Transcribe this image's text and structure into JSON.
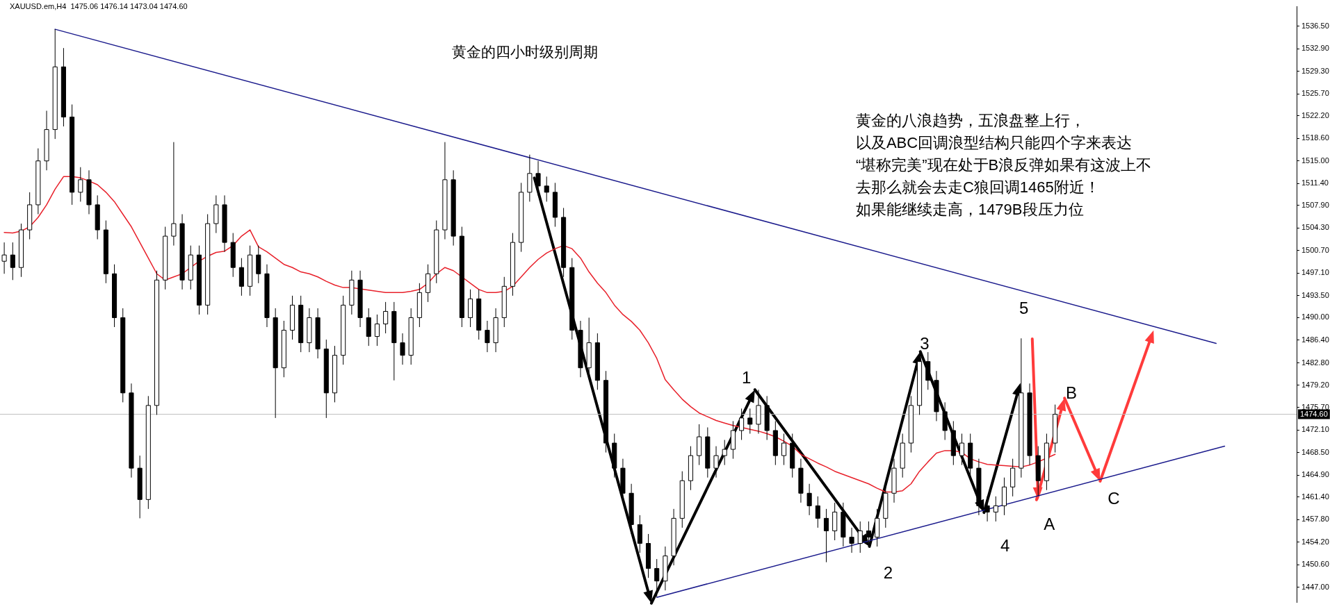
{
  "chart_data": {
    "type": "candlestick",
    "title": "黄金的四小时级别周期",
    "annotations": [
      "XAUUSD.em,H4  1475.06 1476.14 1473.04 1474.60",
      "黄金的八浪趋势，五浪盘整上行，",
      "以及ABC回调浪型结构只能四个字来表达",
      "“堪称完美”现在处于B浪反弹如果有这波上不",
      "去那么就会去走C狼回调1465附近！",
      "如果能继续走高，1479B段压力位",
      "1",
      "2",
      "3",
      "4",
      "5",
      "A",
      "B",
      "C"
    ],
    "categories": [
      null,
      null,
      null,
      null,
      null,
      null,
      null,
      null,
      null,
      null,
      null,
      null,
      null,
      null,
      null,
      null,
      null,
      null,
      null,
      null,
      null,
      null,
      null,
      null,
      null,
      null,
      null,
      null,
      null,
      null,
      null,
      null,
      null,
      null,
      null,
      null,
      null,
      null,
      null,
      null,
      null,
      null,
      null,
      null,
      null,
      null,
      null,
      null,
      null,
      null,
      null,
      null,
      null,
      null,
      null,
      null,
      null,
      null,
      null,
      null,
      null,
      null,
      null,
      null,
      null,
      null,
      null,
      null,
      null,
      null,
      null,
      null,
      null,
      null,
      null,
      null,
      null,
      null,
      null,
      null,
      null,
      null,
      null,
      null,
      null,
      null,
      null,
      null,
      null,
      null,
      null,
      null,
      null,
      null,
      null,
      null,
      null,
      null,
      null,
      null,
      null,
      null,
      null,
      null,
      null,
      null,
      null,
      null,
      null,
      null,
      null,
      null,
      null,
      null,
      null,
      null,
      null,
      null,
      null,
      null,
      null,
      null,
      null,
      null,
      null,
      null,
      null,
      null,
      null,
      null,
      null,
      null,
      null,
      null,
      null,
      null,
      null,
      null,
      null,
      null,
      null,
      null,
      null,
      null,
      null,
      null,
      null,
      null,
      null,
      null,
      null,
      null,
      null
    ],
    "ohlc": [
      [
        1499,
        1502,
        1497,
        1500
      ],
      [
        1500,
        1502,
        1496,
        1498
      ],
      [
        1498,
        1505,
        1496.5,
        1504
      ],
      [
        1504,
        1510,
        1502.5,
        1508
      ],
      [
        1508,
        1517,
        1506.5,
        1515
      ],
      [
        1515,
        1523,
        1513.5,
        1520
      ],
      [
        1520,
        1536,
        1518.5,
        1530
      ],
      [
        1530,
        1533,
        1520.5,
        1522
      ],
      [
        1522,
        1524,
        1508,
        1510
      ],
      [
        1510,
        1514,
        1508.5,
        1512
      ],
      [
        1512,
        1513.5,
        1506.5,
        1508
      ],
      [
        1508,
        1509.5,
        1502.5,
        1504
      ],
      [
        1504,
        1505.5,
        1495.5,
        1497
      ],
      [
        1497,
        1498.5,
        1488.5,
        1490
      ],
      [
        1490,
        1491.5,
        1476.5,
        1478
      ],
      [
        1478,
        1479.5,
        1464.5,
        1466
      ],
      [
        1466,
        1468,
        1458,
        1461
      ],
      [
        1461,
        1477.5,
        1459.5,
        1476
      ],
      [
        1476,
        1497.5,
        1474.5,
        1496
      ],
      [
        1496,
        1504.5,
        1494.5,
        1503
      ],
      [
        1503,
        1518,
        1501.5,
        1505
      ],
      [
        1505,
        1506.5,
        1494.5,
        1496
      ],
      [
        1496,
        1501.5,
        1494.5,
        1500
      ],
      [
        1500,
        1501.5,
        1490.5,
        1492
      ],
      [
        1492,
        1506.5,
        1490.5,
        1505
      ],
      [
        1505,
        1509.5,
        1503.5,
        1508
      ],
      [
        1508,
        1509.5,
        1500.5,
        1502
      ],
      [
        1502,
        1503.5,
        1496.5,
        1498
      ],
      [
        1498,
        1499.5,
        1493.5,
        1495
      ],
      [
        1495,
        1501.5,
        1493.5,
        1500
      ],
      [
        1500,
        1501.5,
        1495.5,
        1497
      ],
      [
        1497,
        1498.5,
        1488.5,
        1490
      ],
      [
        1490,
        1491.5,
        1474,
        1482
      ],
      [
        1482,
        1489.5,
        1480.5,
        1488
      ],
      [
        1488,
        1493.5,
        1486.5,
        1492
      ],
      [
        1492,
        1493.5,
        1484.5,
        1486
      ],
      [
        1486,
        1491.5,
        1484.5,
        1490
      ],
      [
        1490,
        1491.5,
        1483.5,
        1485
      ],
      [
        1485,
        1486.5,
        1474,
        1478
      ],
      [
        1478,
        1485.5,
        1476.5,
        1484
      ],
      [
        1484,
        1493.5,
        1482.5,
        1492
      ],
      [
        1492,
        1497.5,
        1490.5,
        1496
      ],
      [
        1496,
        1497.5,
        1488.5,
        1490
      ],
      [
        1490,
        1491.5,
        1485.5,
        1487
      ],
      [
        1487,
        1490.5,
        1485.5,
        1489
      ],
      [
        1489,
        1492.5,
        1487.5,
        1491
      ],
      [
        1491,
        1492.5,
        1480,
        1486
      ],
      [
        1486,
        1487.5,
        1482.5,
        1484
      ],
      [
        1484,
        1491.5,
        1482.5,
        1490
      ],
      [
        1490,
        1495.5,
        1488.5,
        1494
      ],
      [
        1494,
        1498.5,
        1492.5,
        1497
      ],
      [
        1497,
        1505.5,
        1495.5,
        1504
      ],
      [
        1504,
        1518,
        1502.5,
        1512
      ],
      [
        1512,
        1513.5,
        1501.5,
        1503
      ],
      [
        1503,
        1504.5,
        1488.5,
        1490
      ],
      [
        1490,
        1494.5,
        1488.5,
        1493
      ],
      [
        1493,
        1494.5,
        1486.5,
        1488
      ],
      [
        1488,
        1489.5,
        1484.5,
        1486
      ],
      [
        1486,
        1491.5,
        1484.5,
        1490
      ],
      [
        1490,
        1496.5,
        1488.5,
        1495
      ],
      [
        1495,
        1503.5,
        1493.5,
        1502
      ],
      [
        1502,
        1511.5,
        1500.5,
        1510
      ],
      [
        1510,
        1516,
        1508.5,
        1513
      ],
      [
        1513,
        1515,
        1509.5,
        1511
      ],
      [
        1511,
        1512.5,
        1508.5,
        1510
      ],
      [
        1510,
        1511.5,
        1504.5,
        1506
      ],
      [
        1506,
        1507.5,
        1496.5,
        1498
      ],
      [
        1498,
        1499.5,
        1486.5,
        1488
      ],
      [
        1488,
        1489.5,
        1480.5,
        1482
      ],
      [
        1482,
        1490,
        1480.5,
        1486
      ],
      [
        1486,
        1487.5,
        1478.5,
        1480
      ],
      [
        1480,
        1481.5,
        1468.5,
        1470
      ],
      [
        1470,
        1471.5,
        1464.5,
        1466
      ],
      [
        1466,
        1467.5,
        1460.5,
        1462
      ],
      [
        1462,
        1463.5,
        1455.5,
        1457
      ],
      [
        1457,
        1458.5,
        1452.5,
        1454
      ],
      [
        1454,
        1455.5,
        1448.5,
        1450
      ],
      [
        1450,
        1451.5,
        1445.5,
        1448
      ],
      [
        1448,
        1453.5,
        1446.5,
        1452
      ],
      [
        1452,
        1459.5,
        1450.5,
        1458
      ],
      [
        1458,
        1465.5,
        1456.5,
        1464
      ],
      [
        1464,
        1469.5,
        1462.5,
        1468
      ],
      [
        1468,
        1473,
        1466.5,
        1471
      ],
      [
        1471,
        1472.5,
        1464.5,
        1466
      ],
      [
        1466,
        1469.5,
        1464.5,
        1468
      ],
      [
        1468,
        1470.5,
        1466.5,
        1469
      ],
      [
        1469,
        1473.5,
        1467.5,
        1472
      ],
      [
        1472,
        1475.5,
        1470.5,
        1474
      ],
      [
        1474,
        1475.5,
        1471.5,
        1473
      ],
      [
        1473,
        1478.5,
        1471.5,
        1476
      ],
      [
        1476,
        1477.5,
        1470.5,
        1472
      ],
      [
        1472,
        1473.5,
        1466.5,
        1468
      ],
      [
        1468,
        1471.5,
        1466.5,
        1470
      ],
      [
        1470,
        1471.5,
        1464.5,
        1466
      ],
      [
        1466,
        1467.5,
        1460.5,
        1462
      ],
      [
        1462,
        1463.5,
        1458.5,
        1460
      ],
      [
        1460,
        1461.5,
        1456.5,
        1458
      ],
      [
        1458,
        1459.5,
        1451,
        1456
      ],
      [
        1456,
        1460.5,
        1454.5,
        1459
      ],
      [
        1459,
        1460.5,
        1453.5,
        1455
      ],
      [
        1455,
        1456.5,
        1452.5,
        1454
      ],
      [
        1454,
        1457.5,
        1452.5,
        1456
      ],
      [
        1456,
        1457.5,
        1453.5,
        1455
      ],
      [
        1455,
        1459.5,
        1453.5,
        1458
      ],
      [
        1458,
        1463.5,
        1456.5,
        1462
      ],
      [
        1462,
        1467.5,
        1460.5,
        1466
      ],
      [
        1466,
        1471.5,
        1464.5,
        1470
      ],
      [
        1470,
        1477.5,
        1468.5,
        1476
      ],
      [
        1476,
        1484.5,
        1474.5,
        1483
      ],
      [
        1483,
        1484.5,
        1478.5,
        1480
      ],
      [
        1480,
        1481.5,
        1473.5,
        1475
      ],
      [
        1475,
        1476.5,
        1470.5,
        1472
      ],
      [
        1472,
        1473.5,
        1466.5,
        1468
      ],
      [
        1468,
        1471.5,
        1466.5,
        1470
      ],
      [
        1470,
        1471.5,
        1464.5,
        1466
      ],
      [
        1466,
        1467.5,
        1458.5,
        1460
      ],
      [
        1460,
        1461.5,
        1457.5,
        1459
      ],
      [
        1459,
        1461.5,
        1457.5,
        1460
      ],
      [
        1460,
        1464.5,
        1458.5,
        1463
      ],
      [
        1463,
        1467.5,
        1461.5,
        1466
      ],
      [
        1466,
        1486.7,
        1464.5,
        1478
      ],
      [
        1478,
        1479.5,
        1466.5,
        1468
      ],
      [
        1468,
        1469.5,
        1461.6,
        1464
      ],
      [
        1464,
        1471.5,
        1462.5,
        1470
      ],
      [
        1470,
        1476.14,
        1468.5,
        1474.6
      ],
      null,
      null,
      null,
      null,
      null,
      null,
      null,
      null,
      null,
      null,
      null,
      null,
      null,
      null,
      null,
      null,
      null,
      null,
      null,
      null,
      null,
      null,
      null,
      null,
      null,
      null,
      null,
      null
    ],
    "series": [
      {
        "type": "line",
        "color": "#e8202a",
        "values": [
          1503.6,
          1503.5,
          1503.8,
          1504.5,
          1506,
          1508,
          1510.5,
          1512.5,
          1512.5,
          1512.3,
          1511.8,
          1511.2,
          1510,
          1508.5,
          1506.5,
          1504.5,
          1502,
          1499.5,
          1497,
          1496,
          1496.5,
          1497,
          1498,
          1499,
          1499.8,
          1500.4,
          1500.6,
          1501.5,
          1503,
          1504,
          1501.3,
          1500.5,
          1499.5,
          1498.5,
          1498,
          1497.3,
          1497,
          1496.5,
          1495.8,
          1495.2,
          1494.8,
          1494.8,
          1494.6,
          1494.4,
          1494.2,
          1494,
          1494,
          1494,
          1494.2,
          1494.5,
          1495.5,
          1497,
          1498,
          1497.5,
          1496.5,
          1495.5,
          1494.5,
          1494,
          1494,
          1494.2,
          1495,
          1496.5,
          1498,
          1499.3,
          1500.3,
          1501,
          1501.5,
          1501,
          1499.5,
          1497.3,
          1495.5,
          1494,
          1492,
          1490.5,
          1489.4,
          1488,
          1486,
          1483.5,
          1480.1,
          1478.5,
          1477,
          1475.8,
          1474.8,
          1474.2,
          1473.6,
          1473.2,
          1472.8,
          1472.5,
          1472.2,
          1471.9,
          1471.5,
          1471,
          1470.3,
          1469.5,
          1468.2,
          1467.5,
          1466.8,
          1466.2,
          1465.5,
          1465,
          1464.5,
          1464,
          1463.5,
          1462.8,
          1462.2,
          1462.2,
          1462.4,
          1463.5,
          1465.5,
          1467,
          1468.4,
          1468.8,
          1468.8,
          1468.5,
          1467.5,
          1467,
          1466.6,
          1466.5,
          1466.4,
          1466.3,
          1466.2,
          1466.5,
          1467,
          1467.6,
          1468.2,
          null,
          null,
          null,
          null,
          null,
          null,
          null,
          null,
          null,
          null,
          null,
          null,
          null,
          null,
          null,
          null,
          null,
          null,
          null,
          null,
          null,
          null,
          null,
          null,
          null,
          null,
          null,
          null
        ]
      },
      {
        "type": "line",
        "color": "#1a1a8c",
        "values": [
          null,
          null,
          null,
          null,
          null,
          null,
          1536,
          null,
          null,
          null,
          null,
          null,
          null,
          null,
          null,
          null,
          null,
          null,
          null,
          null,
          null,
          null,
          null,
          null,
          null,
          null,
          null,
          null,
          null,
          null,
          null,
          null,
          null,
          null,
          null,
          null,
          null,
          null,
          null,
          null,
          null,
          null,
          null,
          null,
          null,
          null,
          null,
          null,
          null,
          null,
          null,
          null,
          null,
          null,
          null,
          null,
          null,
          null,
          null,
          null,
          null,
          null,
          null,
          null,
          null,
          null,
          null,
          null,
          null,
          null,
          null,
          null,
          null,
          null,
          null,
          null,
          null,
          null,
          null,
          null,
          null,
          null,
          null,
          null,
          null,
          null,
          null,
          null,
          null,
          null,
          null,
          null,
          null,
          null,
          null,
          null,
          null,
          null,
          null,
          null,
          null,
          null,
          null,
          null,
          null,
          null,
          null,
          null,
          null,
          null,
          null,
          null,
          null,
          null,
          null,
          null,
          null,
          null,
          null,
          null,
          null,
          null,
          null,
          null,
          null,
          null,
          null,
          null,
          null,
          null,
          null,
          null,
          null,
          null,
          null,
          null,
          null,
          null,
          null,
          null,
          null,
          null,
          null,
          1485.9,
          null,
          null,
          null,
          null,
          null,
          null,
          null,
          null,
          null
        ]
      },
      {
        "type": "line",
        "color": "#1a1a8c",
        "values": [
          null,
          null,
          null,
          null,
          null,
          null,
          null,
          null,
          null,
          null,
          null,
          null,
          null,
          null,
          null,
          null,
          null,
          null,
          null,
          null,
          null,
          null,
          null,
          null,
          null,
          null,
          null,
          null,
          null,
          null,
          null,
          null,
          null,
          null,
          null,
          null,
          null,
          null,
          null,
          null,
          null,
          null,
          null,
          null,
          null,
          null,
          null,
          null,
          null,
          null,
          null,
          null,
          null,
          null,
          null,
          null,
          null,
          null,
          null,
          null,
          null,
          null,
          null,
          null,
          null,
          null,
          null,
          null,
          null,
          null,
          null,
          null,
          null,
          null,
          null,
          null,
          null,
          1445.4,
          null,
          null,
          null,
          null,
          null,
          null,
          null,
          null,
          null,
          null,
          null,
          null,
          null,
          null,
          null,
          null,
          null,
          null,
          null,
          null,
          null,
          null,
          null,
          null,
          null,
          null,
          null,
          null,
          null,
          null,
          null,
          null,
          null,
          null,
          null,
          null,
          null,
          null,
          null,
          null,
          null,
          null,
          null,
          null,
          null,
          null,
          null,
          null,
          null,
          null,
          null,
          null,
          null,
          null,
          null,
          null,
          null,
          null,
          null,
          null,
          null,
          null,
          null,
          null,
          null,
          null,
          1469.5,
          null,
          null,
          null,
          null,
          null,
          null,
          null,
          null
        ]
      }
    ],
    "ylim": [
      1444.6,
      1539.6
    ],
    "yticks": [
      {
        "value": 1447,
        "label": "1447.00"
      },
      {
        "value": 1450.6,
        "label": "1450.60"
      },
      {
        "value": 1454.2,
        "label": "1454.20"
      },
      {
        "value": 1457.8,
        "label": "1457.80"
      },
      {
        "value": 1461.4,
        "label": "1461.40"
      },
      {
        "value": 1464.9,
        "label": "1464.90"
      },
      {
        "value": 1468.5,
        "label": "1468.50"
      },
      {
        "value": 1472.1,
        "label": "1472.10"
      },
      {
        "value": 1475.7,
        "label": "1475.70"
      },
      {
        "value": 1479.2,
        "label": "1479.20"
      },
      {
        "value": 1482.8,
        "label": "1482.80"
      },
      {
        "value": 1486.4,
        "label": "1486.40"
      },
      {
        "value": 1490,
        "label": "1490.00"
      },
      {
        "value": 1493.5,
        "label": "1493.50"
      },
      {
        "value": 1497.1,
        "label": "1497.10"
      },
      {
        "value": 1500.7,
        "label": "1500.70"
      },
      {
        "value": 1504.3,
        "label": "1504.30"
      },
      {
        "value": 1507.9,
        "label": "1507.90"
      },
      {
        "value": 1511.4,
        "label": "1511.40"
      },
      {
        "value": 1515,
        "label": "1515.00"
      },
      {
        "value": 1518.6,
        "label": "1518.60"
      },
      {
        "value": 1522.2,
        "label": "1522.20"
      },
      {
        "value": 1525.7,
        "label": "1525.70"
      },
      {
        "value": 1529.3,
        "label": "1529.30"
      },
      {
        "value": 1532.9,
        "label": "1532.90"
      },
      {
        "value": 1536.5,
        "label": "1536.50"
      }
    ],
    "ref_lines": [
      {
        "axis": "y",
        "value": 1474.6,
        "label": "1474.60",
        "color": "#c0c0c0"
      }
    ],
    "tick_labels": "y"
  }
}
